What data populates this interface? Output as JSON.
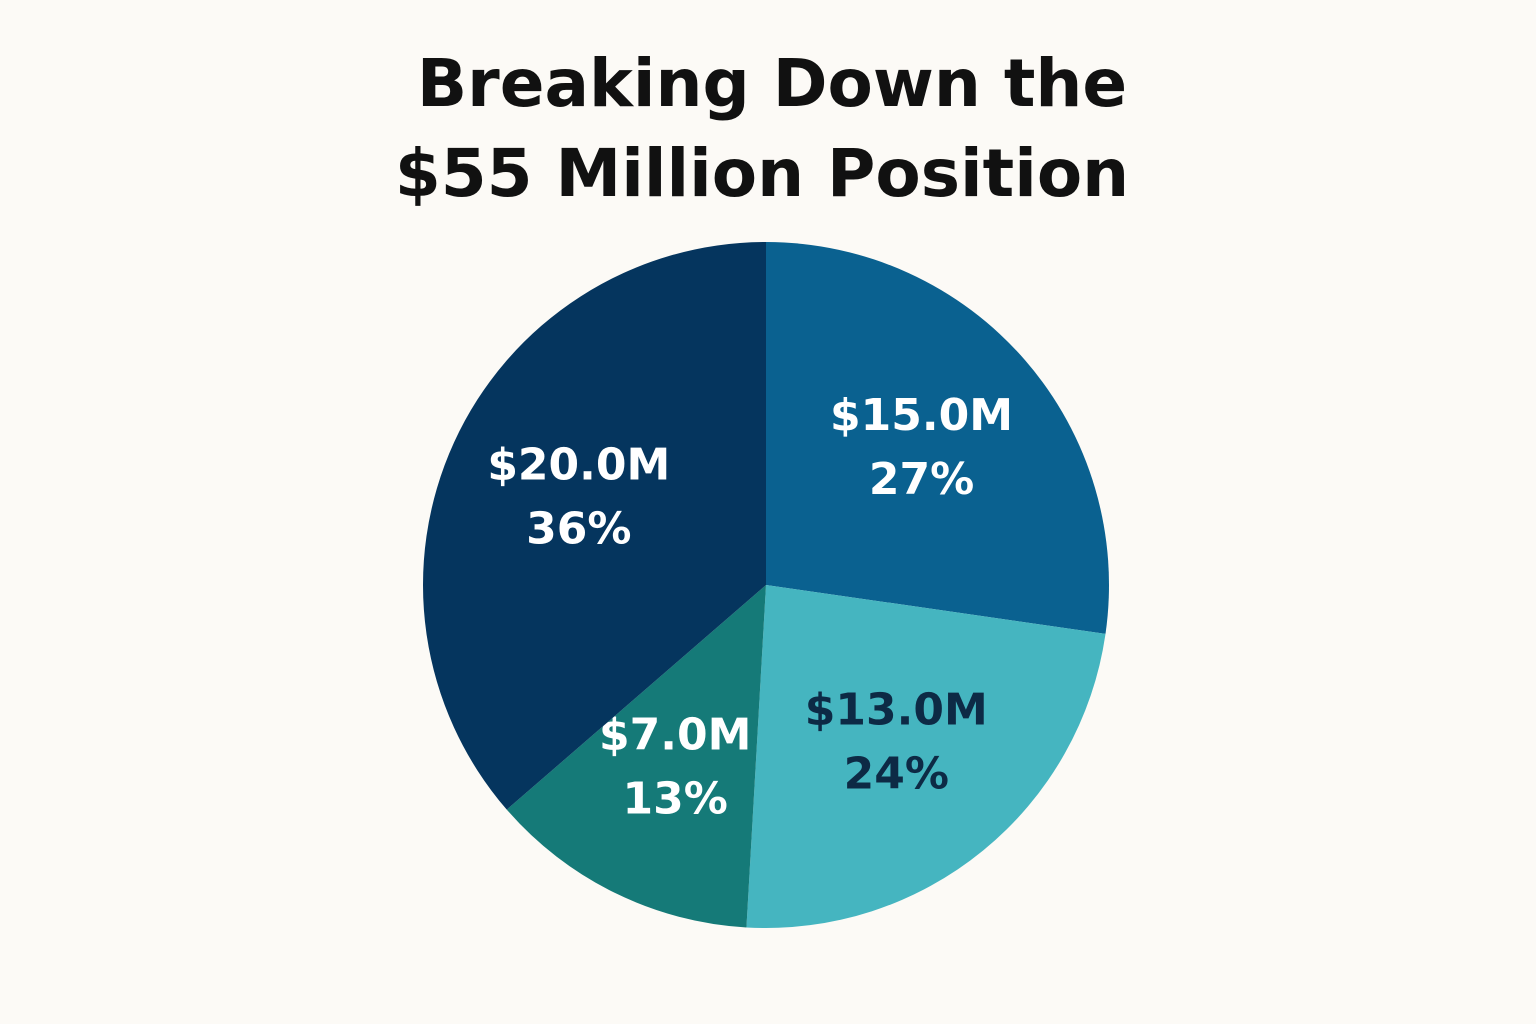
{
  "chart_data": {
    "type": "pie",
    "title": [
      "Breaking Down the",
      "$55 Million Position"
    ],
    "categories": [
      null,
      null,
      null,
      null
    ],
    "values": [
      15,
      13,
      7,
      20
    ],
    "value_labels": [
      "$15.0M",
      "$13.0M",
      "$7.0M",
      "$20.0M"
    ],
    "percent_labels": [
      "27%",
      "24%",
      "13%",
      "36%"
    ],
    "colors": [
      "#0a6190",
      "#45b5c0",
      "#157a78",
      "#05355e"
    ],
    "label_colors": [
      "#ffffff",
      "#0d2a45",
      "#ffffff",
      "#ffffff"
    ],
    "start_angle": "top",
    "direction": "clockwise"
  }
}
